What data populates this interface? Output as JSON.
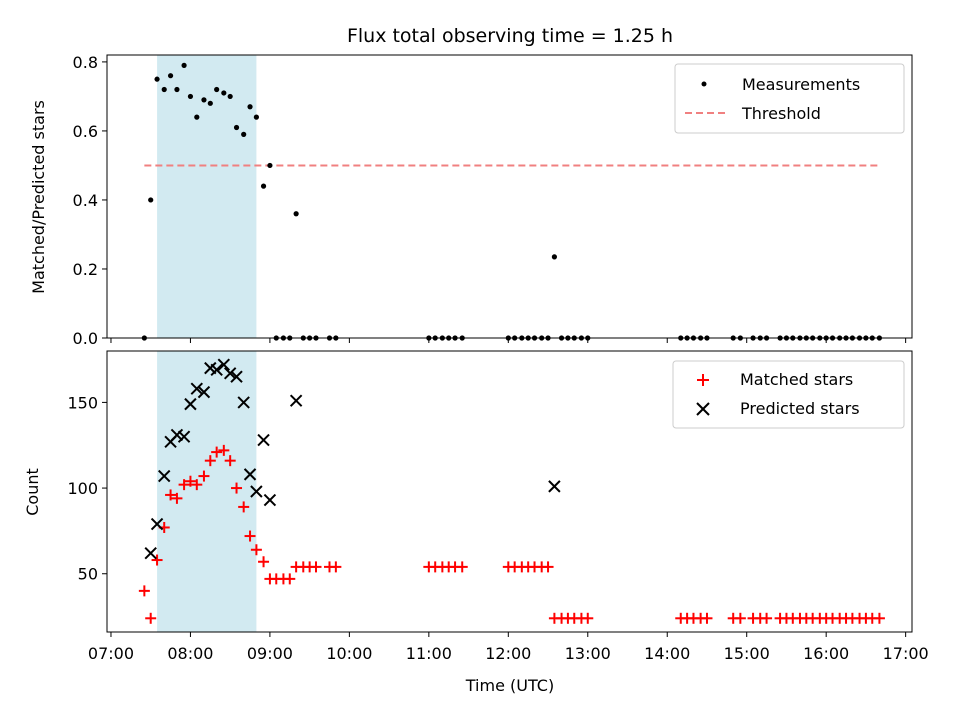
{
  "chart_data": {
    "title": "Flux total observing time = 1.25 h",
    "xlabel": "Time (UTC)",
    "x_unit": "hours UTC",
    "xlim": [
      6.95,
      17.08
    ],
    "x_ticks": [
      {
        "value": 7,
        "label": "07:00"
      },
      {
        "value": 8,
        "label": "08:00"
      },
      {
        "value": 9,
        "label": "09:00"
      },
      {
        "value": 10,
        "label": "10:00"
      },
      {
        "value": 11,
        "label": "11:00"
      },
      {
        "value": 12,
        "label": "12:00"
      },
      {
        "value": 13,
        "label": "13:00"
      },
      {
        "value": 14,
        "label": "14:00"
      },
      {
        "value": 15,
        "label": "15:00"
      },
      {
        "value": 16,
        "label": "16:00"
      },
      {
        "value": 17,
        "label": "17:00"
      }
    ],
    "highlight_span": {
      "x_start": 7.58,
      "x_end": 8.83,
      "color": "#add8e6"
    },
    "subplots": [
      {
        "type": "scatter",
        "ylabel": "Matched/Predicted stars",
        "ylim": [
          0,
          0.82
        ],
        "y_ticks": [
          0.0,
          0.2,
          0.4,
          0.6,
          0.8
        ],
        "y_tick_labels": [
          "0.0",
          "0.2",
          "0.4",
          "0.6",
          "0.8"
        ],
        "legend_position": "upper right",
        "series": [
          {
            "name": "Measurements",
            "kind": "points",
            "color": "#000000",
            "x": [
              7.42,
              7.5,
              7.58,
              7.67,
              7.75,
              7.83,
              7.92,
              8.0,
              8.08,
              8.17,
              8.25,
              8.33,
              8.42,
              8.5,
              8.58,
              8.67,
              8.75,
              8.83,
              8.92,
              9.0,
              9.08,
              9.17,
              9.25,
              9.33,
              9.42,
              9.5,
              9.58,
              9.75,
              9.83,
              11.0,
              11.08,
              11.17,
              11.25,
              11.33,
              11.42,
              12.0,
              12.08,
              12.17,
              12.25,
              12.33,
              12.42,
              12.5,
              12.58,
              12.67,
              12.75,
              12.83,
              12.92,
              13.0,
              14.17,
              14.25,
              14.33,
              14.42,
              14.5,
              14.83,
              14.92,
              15.08,
              15.17,
              15.25,
              15.42,
              15.5,
              15.58,
              15.67,
              15.75,
              15.83,
              15.92,
              16.0,
              16.08,
              16.17,
              16.25,
              16.33,
              16.42,
              16.5,
              16.58,
              16.67
            ],
            "y": [
              0.0,
              0.4,
              0.75,
              0.72,
              0.76,
              0.72,
              0.79,
              0.7,
              0.64,
              0.69,
              0.68,
              0.72,
              0.71,
              0.7,
              0.61,
              0.59,
              0.67,
              0.64,
              0.44,
              0.5,
              0.0,
              0.0,
              0.0,
              0.36,
              0.0,
              0.0,
              0.0,
              0.0,
              0.0,
              0.0,
              0.0,
              0.0,
              0.0,
              0.0,
              0.0,
              0.0,
              0.0,
              0.0,
              0.0,
              0.0,
              0.0,
              0.0,
              0.235,
              0.0,
              0.0,
              0.0,
              0.0,
              0.0,
              0.0,
              0.0,
              0.0,
              0.0,
              0.0,
              0.0,
              0.0,
              0.0,
              0.0,
              0.0,
              0.0,
              0.0,
              0.0,
              0.0,
              0.0,
              0.0,
              0.0,
              0.0,
              0.0,
              0.0,
              0.0,
              0.0,
              0.0,
              0.0,
              0.0,
              0.0
            ]
          },
          {
            "name": "Threshold",
            "kind": "dashed-line",
            "color": "#f08080",
            "x": [
              7.42,
              16.67
            ],
            "y": [
              0.5,
              0.5
            ]
          }
        ]
      },
      {
        "type": "scatter",
        "ylabel": "Count",
        "ylim": [
          16,
          180
        ],
        "y_ticks": [
          50,
          100,
          150
        ],
        "y_tick_labels": [
          "50",
          "100",
          "150"
        ],
        "legend_position": "upper right",
        "series": [
          {
            "name": "Matched stars",
            "kind": "plus",
            "color": "#ff0000",
            "x": [
              7.42,
              7.5,
              7.58,
              7.67,
              7.75,
              7.83,
              7.92,
              8.0,
              8.08,
              8.17,
              8.25,
              8.33,
              8.42,
              8.5,
              8.58,
              8.67,
              8.75,
              8.83,
              8.92,
              9.0,
              9.08,
              9.17,
              9.25,
              9.33,
              9.42,
              9.5,
              9.58,
              9.75,
              9.83,
              11.0,
              11.08,
              11.17,
              11.25,
              11.33,
              11.42,
              12.0,
              12.08,
              12.17,
              12.25,
              12.33,
              12.42,
              12.5,
              12.58,
              12.67,
              12.75,
              12.83,
              12.92,
              13.0,
              14.17,
              14.25,
              14.33,
              14.42,
              14.5,
              14.83,
              14.92,
              15.08,
              15.17,
              15.25,
              15.42,
              15.5,
              15.58,
              15.67,
              15.75,
              15.83,
              15.92,
              16.0,
              16.08,
              16.17,
              16.25,
              16.33,
              16.42,
              16.5,
              16.58,
              16.67
            ],
            "y": [
              40,
              24,
              58,
              77,
              96,
              94,
              102,
              104,
              102,
              107,
              116,
              121,
              122,
              116,
              100,
              89,
              72,
              64,
              57,
              47,
              47,
              47,
              47,
              54,
              54,
              54,
              54,
              54,
              54,
              54,
              54,
              54,
              54,
              54,
              54,
              54,
              54,
              54,
              54,
              54,
              54,
              54,
              24,
              24,
              24,
              24,
              24,
              24,
              24,
              24,
              24,
              24,
              24,
              24,
              24,
              24,
              24,
              24,
              24,
              24,
              24,
              24,
              24,
              24,
              24,
              24,
              24,
              24,
              24,
              24,
              24,
              24,
              24,
              24
            ]
          },
          {
            "name": "Predicted stars",
            "kind": "cross",
            "color": "#000000",
            "x": [
              7.5,
              7.58,
              7.67,
              7.75,
              7.83,
              7.92,
              8.0,
              8.08,
              8.17,
              8.25,
              8.33,
              8.42,
              8.5,
              8.58,
              8.67,
              8.75,
              8.83,
              8.92,
              9.0,
              9.33,
              12.58
            ],
            "y": [
              62,
              79,
              107,
              127,
              131,
              130,
              149,
              158,
              156,
              170,
              169,
              172,
              167,
              165,
              150,
              108,
              98,
              128,
              93,
              151,
              101
            ]
          }
        ]
      }
    ]
  }
}
